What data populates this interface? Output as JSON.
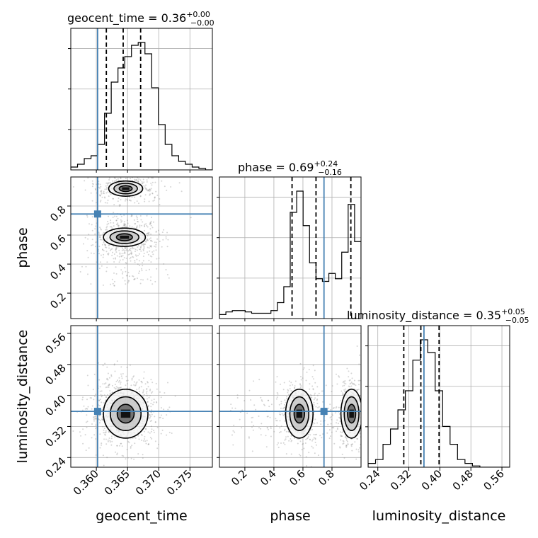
{
  "chart_data": {
    "type": "corner",
    "parameters": [
      "geocent_time",
      "phase",
      "luminosity_distance"
    ],
    "axis_labels": [
      "geocent_time",
      "phase",
      "luminosity_distance"
    ],
    "ranges": [
      [
        0.3559,
        0.3786
      ],
      [
        0.025,
        1.0
      ],
      [
        0.215,
        0.58
      ]
    ],
    "truths": [
      0.3602,
      0.745,
      0.359
    ],
    "truth_color": "#4682b4",
    "ticks": {
      "geocent_time": [
        "0.360",
        "0.365",
        "0.370",
        "0.375"
      ],
      "phase": [
        "0.2",
        "0.4",
        "0.6",
        "0.8"
      ],
      "luminosity_distance": [
        "0.24",
        "0.32",
        "0.40",
        "0.48",
        "0.56"
      ]
    },
    "titles": [
      {
        "param": "geocent_time",
        "median": "0.36",
        "plus": "+0.00",
        "minus": "−0.00"
      },
      {
        "param": "phase",
        "median": "0.69",
        "plus": "+0.24",
        "minus": "−0.16"
      },
      {
        "param": "luminosity_distance",
        "median": "0.35",
        "plus": "+0.05",
        "minus": "−0.05"
      }
    ],
    "quantiles": {
      "geocent_time": [
        0.3616,
        0.3643,
        0.3671
      ],
      "phase": [
        0.525,
        0.69,
        0.93
      ],
      "luminosity_distance": [
        0.307,
        0.351,
        0.398
      ]
    },
    "histograms": {
      "geocent_time": {
        "x0": 0.3559,
        "x1": 0.3786,
        "counts": [
          2,
          4,
          8,
          10,
          18,
          40,
          62,
          72,
          80,
          88,
          90,
          82,
          58,
          32,
          18,
          10,
          6,
          4,
          2,
          1,
          0
        ]
      },
      "phase": {
        "x0": 0.025,
        "x1": 1.0,
        "counts": [
          3,
          5,
          6,
          6,
          5,
          4,
          4,
          4,
          6,
          12,
          24,
          80,
          96,
          70,
          42,
          30,
          28,
          34,
          30,
          50,
          86,
          58
        ]
      },
      "luminosity_distance": {
        "x0": 0.215,
        "x1": 0.58,
        "counts": [
          3,
          6,
          18,
          30,
          45,
          60,
          84,
          100,
          90,
          60,
          32,
          18,
          6,
          3,
          1,
          0,
          0,
          0,
          0
        ]
      }
    },
    "grid": true
  }
}
